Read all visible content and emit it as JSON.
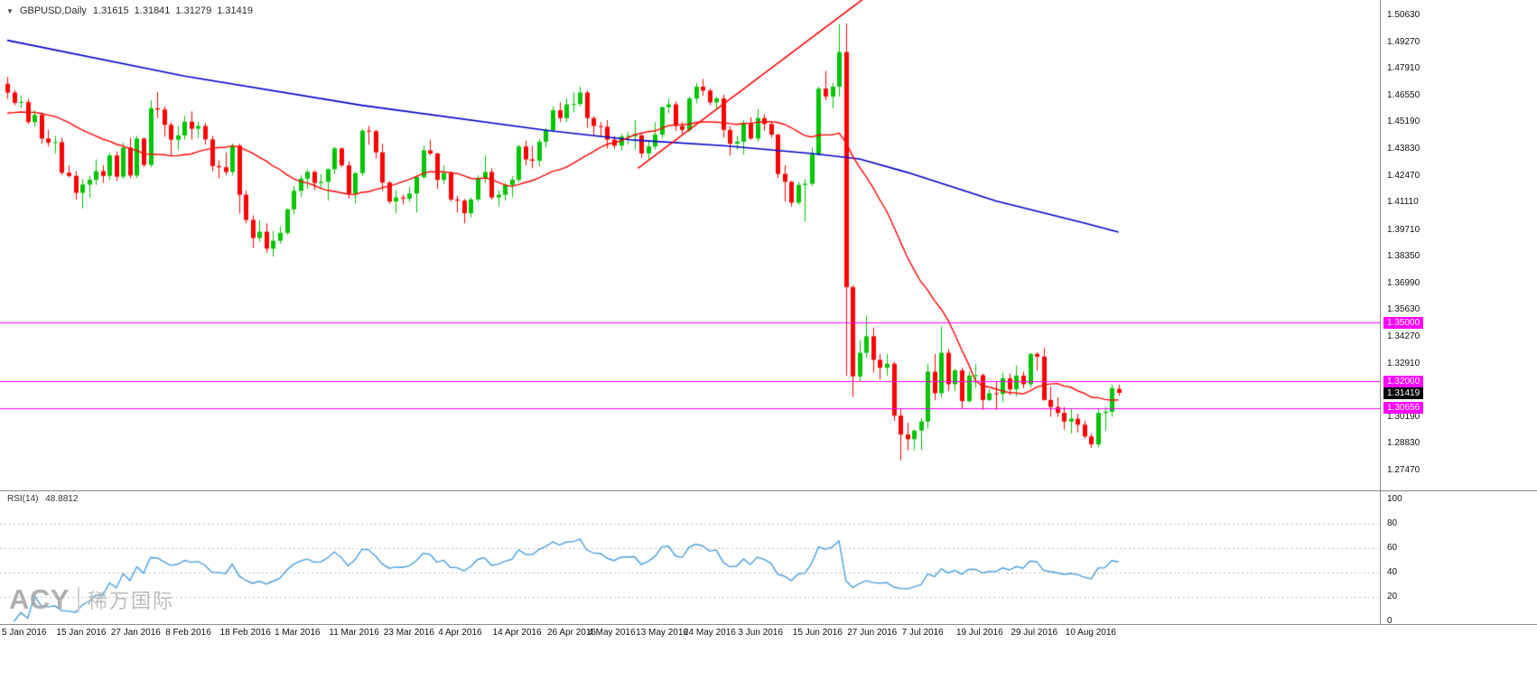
{
  "header": {
    "dropdown_icon": "▼",
    "symbol": "GBPUSD,Daily",
    "open": "1.31615",
    "high": "1.31841",
    "low": "1.31279",
    "close": "1.31419"
  },
  "watermark": {
    "brand": "ACY",
    "name": "稀万国际"
  },
  "colors": {
    "background": "#ffffff",
    "up": "#00c400",
    "down": "#ff0000",
    "ma_slow": "#0000cc",
    "ma_fast": "#ff0000",
    "trendline": "#ff0000",
    "level": "#ff00ff",
    "rsi_line": "#4a9ede",
    "axis_text": "#101010",
    "separator": "#8c8c8c",
    "level_badge_bg": "#ff00ff",
    "current_badge_bg": "#000000"
  },
  "chart_data": {
    "type": "candlestick",
    "title": "GBPUSD Daily with RSI(14)",
    "symbol": "GBPUSD",
    "timeframe": "Daily",
    "current_ohlc": {
      "open": 1.31615,
      "high": 1.31841,
      "low": 1.31279,
      "close": 1.31419
    },
    "ylim": [
      1.2747,
      1.5141
    ],
    "grid": false,
    "y_axis_labels": [
      "1.50630",
      "1.49270",
      "1.47910",
      "1.46550",
      "1.45190",
      "1.43830",
      "1.42470",
      "1.41110",
      "1.39710",
      "1.38350",
      "1.36990",
      "1.35630",
      "1.34270",
      "1.32910",
      "1.30190",
      "1.28830",
      "1.27470"
    ],
    "x_axis_labels": [
      {
        "label": "5 Jan 2016",
        "i": 0
      },
      {
        "label": "15 Jan 2016",
        "i": 8
      },
      {
        "label": "27 Jan 2016",
        "i": 16
      },
      {
        "label": "8 Feb 2016",
        "i": 24
      },
      {
        "label": "18 Feb 2016",
        "i": 32
      },
      {
        "label": "1 Mar 2016",
        "i": 40
      },
      {
        "label": "11 Mar 2016",
        "i": 48
      },
      {
        "label": "23 Mar 2016",
        "i": 56
      },
      {
        "label": "4 Apr 2016",
        "i": 64
      },
      {
        "label": "14 Apr 2016",
        "i": 72
      },
      {
        "label": "26 Apr 2016",
        "i": 80
      },
      {
        "label": "4 May 2016",
        "i": 86
      },
      {
        "label": "13 May 2016",
        "i": 93
      },
      {
        "label": "24 May 2016",
        "i": 100
      },
      {
        "label": "3 Jun 2016",
        "i": 108
      },
      {
        "label": "15 Jun 2016",
        "i": 116
      },
      {
        "label": "27 Jun 2016",
        "i": 124
      },
      {
        "label": "7 Jul 2016",
        "i": 132
      },
      {
        "label": "19 Jul 2016",
        "i": 140
      },
      {
        "label": "29 Jul 2016",
        "i": 148
      },
      {
        "label": "10 Aug 2016",
        "i": 156
      }
    ],
    "candles": [
      [
        1.4715,
        1.475,
        1.4638,
        1.467
      ],
      [
        1.467,
        1.4683,
        1.4605,
        1.4618
      ],
      [
        1.4618,
        1.4655,
        1.459,
        1.4622
      ],
      [
        1.4622,
        1.4638,
        1.451,
        1.452
      ],
      [
        1.452,
        1.458,
        1.4495,
        1.4556
      ],
      [
        1.4556,
        1.457,
        1.441,
        1.4436
      ],
      [
        1.4436,
        1.448,
        1.4395,
        1.4415
      ],
      [
        1.4415,
        1.445,
        1.436,
        1.4418
      ],
      [
        1.4418,
        1.444,
        1.425,
        1.4262
      ],
      [
        1.4262,
        1.43,
        1.4238,
        1.4246
      ],
      [
        1.4246,
        1.427,
        1.4125,
        1.416
      ],
      [
        1.416,
        1.423,
        1.408,
        1.4202
      ],
      [
        1.4202,
        1.4245,
        1.4135,
        1.4226
      ],
      [
        1.4226,
        1.433,
        1.42,
        1.427
      ],
      [
        1.427,
        1.43,
        1.421,
        1.4246
      ],
      [
        1.4246,
        1.4365,
        1.4225,
        1.435
      ],
      [
        1.435,
        1.437,
        1.422,
        1.4242
      ],
      [
        1.4242,
        1.4415,
        1.423,
        1.439
      ],
      [
        1.439,
        1.444,
        1.4235,
        1.4248
      ],
      [
        1.4248,
        1.445,
        1.4235,
        1.4436
      ],
      [
        1.4436,
        1.4442,
        1.429,
        1.4302
      ],
      [
        1.4302,
        1.463,
        1.429,
        1.459
      ],
      [
        1.459,
        1.4672,
        1.454,
        1.4584
      ],
      [
        1.4584,
        1.46,
        1.4445,
        1.4506
      ],
      [
        1.4506,
        1.452,
        1.435,
        1.443
      ],
      [
        1.443,
        1.45,
        1.438,
        1.4452
      ],
      [
        1.4452,
        1.455,
        1.443,
        1.4522
      ],
      [
        1.4522,
        1.4575,
        1.443,
        1.4486
      ],
      [
        1.4486,
        1.4522,
        1.444,
        1.45
      ],
      [
        1.45,
        1.4515,
        1.4405,
        1.4432
      ],
      [
        1.4432,
        1.445,
        1.427,
        1.4296
      ],
      [
        1.4296,
        1.4325,
        1.4235,
        1.429
      ],
      [
        1.429,
        1.4365,
        1.425,
        1.4266
      ],
      [
        1.4266,
        1.441,
        1.425,
        1.44
      ],
      [
        1.44,
        1.441,
        1.4055,
        1.415
      ],
      [
        1.415,
        1.417,
        1.4005,
        1.4022
      ],
      [
        1.4022,
        1.4045,
        1.3879,
        1.393
      ],
      [
        1.393,
        1.402,
        1.391,
        1.3962
      ],
      [
        1.3962,
        1.4005,
        1.3855,
        1.3876
      ],
      [
        1.3876,
        1.3965,
        1.3836,
        1.3916
      ],
      [
        1.3916,
        1.399,
        1.39,
        1.3956
      ],
      [
        1.3956,
        1.408,
        1.3945,
        1.4076
      ],
      [
        1.4076,
        1.4195,
        1.405,
        1.417
      ],
      [
        1.417,
        1.425,
        1.414,
        1.4232
      ],
      [
        1.4232,
        1.428,
        1.418,
        1.4266
      ],
      [
        1.4266,
        1.4275,
        1.4175,
        1.421
      ],
      [
        1.421,
        1.4255,
        1.418,
        1.4216
      ],
      [
        1.4216,
        1.4285,
        1.412,
        1.428
      ],
      [
        1.428,
        1.4395,
        1.4255,
        1.4386
      ],
      [
        1.4386,
        1.439,
        1.429,
        1.43
      ],
      [
        1.43,
        1.432,
        1.413,
        1.4156
      ],
      [
        1.4156,
        1.4265,
        1.4105,
        1.426
      ],
      [
        1.426,
        1.4485,
        1.4245,
        1.4476
      ],
      [
        1.4476,
        1.45,
        1.4405,
        1.4474
      ],
      [
        1.4474,
        1.448,
        1.4335,
        1.4366
      ],
      [
        1.4366,
        1.441,
        1.417,
        1.4212
      ],
      [
        1.4212,
        1.422,
        1.4105,
        1.4116
      ],
      [
        1.4116,
        1.4175,
        1.4055,
        1.4136
      ],
      [
        1.4136,
        1.415,
        1.41,
        1.413
      ],
      [
        1.413,
        1.419,
        1.4115,
        1.4156
      ],
      [
        1.4156,
        1.425,
        1.406,
        1.424
      ],
      [
        1.424,
        1.44,
        1.423,
        1.4376
      ],
      [
        1.4376,
        1.443,
        1.435,
        1.436
      ],
      [
        1.436,
        1.4365,
        1.418,
        1.4226
      ],
      [
        1.4226,
        1.43,
        1.4205,
        1.426
      ],
      [
        1.426,
        1.427,
        1.4115,
        1.4126
      ],
      [
        1.4126,
        1.4145,
        1.406,
        1.412
      ],
      [
        1.412,
        1.413,
        1.4005,
        1.4056
      ],
      [
        1.4056,
        1.4135,
        1.4035,
        1.4126
      ],
      [
        1.4126,
        1.425,
        1.4115,
        1.4236
      ],
      [
        1.4236,
        1.435,
        1.421,
        1.4266
      ],
      [
        1.4266,
        1.4285,
        1.4125,
        1.4136
      ],
      [
        1.4136,
        1.4175,
        1.409,
        1.415
      ],
      [
        1.415,
        1.421,
        1.412,
        1.42
      ],
      [
        1.42,
        1.4245,
        1.4135,
        1.4226
      ],
      [
        1.4226,
        1.4405,
        1.4215,
        1.4396
      ],
      [
        1.4396,
        1.4425,
        1.43,
        1.433
      ],
      [
        1.433,
        1.4399,
        1.4285,
        1.4323
      ],
      [
        1.4323,
        1.4435,
        1.4295,
        1.442
      ],
      [
        1.442,
        1.449,
        1.439,
        1.448
      ],
      [
        1.448,
        1.46,
        1.447,
        1.458
      ],
      [
        1.458,
        1.462,
        1.452,
        1.454
      ],
      [
        1.454,
        1.464,
        1.452,
        1.461
      ],
      [
        1.461,
        1.467,
        1.457,
        1.4612
      ],
      [
        1.4612,
        1.47,
        1.46,
        1.467
      ],
      [
        1.467,
        1.4683,
        1.449,
        1.454
      ],
      [
        1.454,
        1.455,
        1.445,
        1.45
      ],
      [
        1.45,
        1.452,
        1.445,
        1.4496
      ],
      [
        1.4496,
        1.453,
        1.4385,
        1.443
      ],
      [
        1.443,
        1.445,
        1.4385,
        1.44
      ],
      [
        1.44,
        1.446,
        1.4375,
        1.4446
      ],
      [
        1.4446,
        1.447,
        1.4405,
        1.445
      ],
      [
        1.445,
        1.453,
        1.438,
        1.4452
      ],
      [
        1.4452,
        1.446,
        1.434,
        1.436
      ],
      [
        1.436,
        1.4425,
        1.433,
        1.4396
      ],
      [
        1.4396,
        1.452,
        1.438,
        1.4456
      ],
      [
        1.4456,
        1.46,
        1.444,
        1.4596
      ],
      [
        1.4596,
        1.464,
        1.4565,
        1.461
      ],
      [
        1.461,
        1.4625,
        1.4475,
        1.45
      ],
      [
        1.45,
        1.452,
        1.446,
        1.448
      ],
      [
        1.448,
        1.465,
        1.447,
        1.464
      ],
      [
        1.464,
        1.472,
        1.4615,
        1.47
      ],
      [
        1.47,
        1.474,
        1.4655,
        1.468
      ],
      [
        1.468,
        1.469,
        1.4605,
        1.462
      ],
      [
        1.462,
        1.465,
        1.459,
        1.464
      ],
      [
        1.464,
        1.466,
        1.444,
        1.448
      ],
      [
        1.448,
        1.45,
        1.435,
        1.441
      ],
      [
        1.441,
        1.445,
        1.438,
        1.442
      ],
      [
        1.442,
        1.453,
        1.4355,
        1.4516
      ],
      [
        1.4516,
        1.4545,
        1.443,
        1.4436
      ],
      [
        1.4436,
        1.4585,
        1.442,
        1.454
      ],
      [
        1.454,
        1.456,
        1.4475,
        1.451
      ],
      [
        1.451,
        1.452,
        1.444,
        1.4456
      ],
      [
        1.4456,
        1.446,
        1.4235,
        1.4256
      ],
      [
        1.4256,
        1.43,
        1.4115,
        1.4216
      ],
      [
        1.4216,
        1.422,
        1.409,
        1.411
      ],
      [
        1.411,
        1.4215,
        1.41,
        1.42
      ],
      [
        1.42,
        1.423,
        1.4013,
        1.4206
      ],
      [
        1.4206,
        1.439,
        1.4195,
        1.4356
      ],
      [
        1.4356,
        1.47,
        1.435,
        1.469
      ],
      [
        1.469,
        1.478,
        1.463,
        1.465
      ],
      [
        1.465,
        1.472,
        1.459,
        1.47
      ],
      [
        1.47,
        1.5018,
        1.465,
        1.4876
      ],
      [
        1.4876,
        1.502,
        1.3228,
        1.368
      ],
      [
        1.368,
        1.369,
        1.3121,
        1.3226
      ],
      [
        1.3226,
        1.341,
        1.32,
        1.3346
      ],
      [
        1.3346,
        1.3535,
        1.332,
        1.343
      ],
      [
        1.343,
        1.3475,
        1.3245,
        1.331
      ],
      [
        1.331,
        1.334,
        1.321,
        1.327
      ],
      [
        1.327,
        1.334,
        1.323,
        1.329
      ],
      [
        1.329,
        1.33,
        1.3,
        1.3026
      ],
      [
        1.3026,
        1.306,
        1.2798,
        1.293
      ],
      [
        1.293,
        1.299,
        1.285,
        1.2906
      ],
      [
        1.2906,
        1.2955,
        1.285,
        1.295
      ],
      [
        1.295,
        1.3015,
        1.2851,
        1.2996
      ],
      [
        1.2996,
        1.329,
        1.296,
        1.325
      ],
      [
        1.325,
        1.334,
        1.3105,
        1.314
      ],
      [
        1.314,
        1.348,
        1.312,
        1.3346
      ],
      [
        1.3346,
        1.3365,
        1.315,
        1.3186
      ],
      [
        1.3186,
        1.3265,
        1.315,
        1.3256
      ],
      [
        1.3256,
        1.327,
        1.3065,
        1.31
      ],
      [
        1.31,
        1.325,
        1.309,
        1.323
      ],
      [
        1.323,
        1.329,
        1.3165,
        1.3232
      ],
      [
        1.3232,
        1.324,
        1.3055,
        1.3106
      ],
      [
        1.3106,
        1.316,
        1.31,
        1.314
      ],
      [
        1.314,
        1.32,
        1.3055,
        1.3136
      ],
      [
        1.3136,
        1.3245,
        1.3095,
        1.3216
      ],
      [
        1.3216,
        1.324,
        1.313,
        1.316
      ],
      [
        1.316,
        1.328,
        1.3125,
        1.323
      ],
      [
        1.323,
        1.325,
        1.3165,
        1.3186
      ],
      [
        1.3186,
        1.3345,
        1.317,
        1.334
      ],
      [
        1.334,
        1.335,
        1.3255,
        1.3326
      ],
      [
        1.3326,
        1.337,
        1.3102,
        1.3106
      ],
      [
        1.3106,
        1.3175,
        1.302,
        1.307
      ],
      [
        1.307,
        1.312,
        1.302,
        1.304
      ],
      [
        1.304,
        1.307,
        1.2955,
        1.2996
      ],
      [
        1.2996,
        1.306,
        1.2935,
        1.301
      ],
      [
        1.301,
        1.3035,
        1.294,
        1.298
      ],
      [
        1.298,
        1.3,
        1.291,
        1.292
      ],
      [
        1.292,
        1.2935,
        1.2863,
        1.288
      ],
      [
        1.288,
        1.306,
        1.2865,
        1.304
      ],
      [
        1.304,
        1.307,
        1.295,
        1.3046
      ],
      [
        1.3046,
        1.3185,
        1.302,
        1.3166
      ],
      [
        1.31615,
        1.31841,
        1.31279,
        1.31419
      ]
    ],
    "overlays": {
      "ma_slow": {
        "label": "slow moving average (blue)",
        "color": "#0000cc",
        "anchors": [
          [
            0,
            1.4936
          ],
          [
            26,
            1.4754
          ],
          [
            52,
            1.4605
          ],
          [
            79,
            1.4478
          ],
          [
            92,
            1.4428
          ],
          [
            105,
            1.44
          ],
          [
            118,
            1.436
          ],
          [
            125,
            1.4332
          ],
          [
            132,
            1.4264
          ],
          [
            145,
            1.4119
          ],
          [
            158,
            1.4006
          ],
          [
            163,
            1.396
          ]
        ]
      },
      "ma_fast": {
        "label": "fast moving average (red)",
        "color": "#ff0000",
        "period": 20,
        "seed": 1.456
      },
      "trendline": {
        "label": "ascending trendline",
        "color": "#ff0000",
        "from": [
          92.5,
          1.4285
        ],
        "to": [
          125.5,
          1.5145
        ]
      },
      "hlines": [
        {
          "price": 1.35,
          "label": "1.35000"
        },
        {
          "price": 1.32,
          "label": "1.32000"
        },
        {
          "price": 1.30656,
          "label": "1.30656"
        }
      ],
      "current_price": {
        "price": 1.31419,
        "label": "1.31419"
      }
    },
    "rsi": {
      "name_label": "RSI(14)",
      "value_label": "48.8812",
      "period": 14,
      "last_value": 48.8812,
      "levels": [
        100,
        80,
        60,
        40,
        20,
        0
      ],
      "dashed_levels": [
        80,
        60,
        40,
        20
      ],
      "color": "#4a9ede"
    }
  }
}
